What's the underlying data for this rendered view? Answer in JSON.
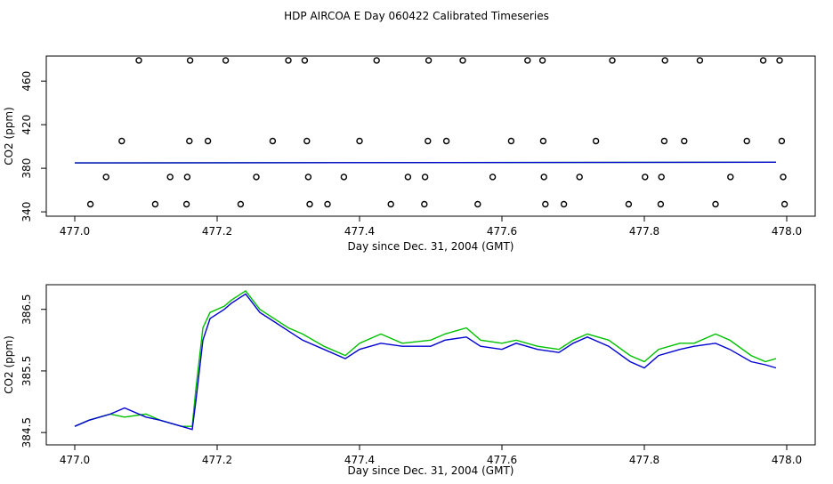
{
  "page": {
    "title": "HDP AIRCOA E  Day 060422  Calibrated Timeseries"
  },
  "colors": {
    "background": "#ffffff",
    "axis": "#000000",
    "series_green": "#00c000",
    "series_blue": "#0000d0",
    "markers": "#000000"
  },
  "chart_data": [
    {
      "type": "scatter",
      "xlabel": "Day since Dec. 31, 2004 (GMT)",
      "ylabel": "CO2 (ppm)",
      "xlim": [
        476.96,
        478.04
      ],
      "ylim": [
        336,
        483
      ],
      "xticks": [
        "477.0",
        "477.2",
        "477.4",
        "477.6",
        "477.8",
        "478.0"
      ],
      "yticks": [
        "340",
        "380",
        "420",
        "460"
      ],
      "marker_series": [
        {
          "y": 479,
          "x": [
            477.09,
            477.162,
            477.212,
            477.3,
            477.323,
            477.424,
            477.497,
            477.545,
            477.636,
            477.657,
            477.755,
            477.829,
            477.878,
            477.967,
            477.99
          ]
        },
        {
          "y": 405,
          "x": [
            477.066,
            477.161,
            477.187,
            477.278,
            477.326,
            477.4,
            477.496,
            477.522,
            477.613,
            477.658,
            477.732,
            477.828,
            477.856,
            477.944,
            477.993
          ]
        },
        {
          "y": 372,
          "x": [
            477.044,
            477.134,
            477.158,
            477.255,
            477.328,
            477.378,
            477.468,
            477.492,
            477.587,
            477.659,
            477.709,
            477.801,
            477.824,
            477.921,
            477.995
          ]
        },
        {
          "y": 347,
          "x": [
            477.022,
            477.113,
            477.157,
            477.233,
            477.33,
            477.355,
            477.444,
            477.491,
            477.566,
            477.661,
            477.687,
            477.778,
            477.823,
            477.9,
            477.997
          ]
        }
      ],
      "line_series": [
        {
          "color": "green",
          "x": [
            477.0,
            477.985
          ],
          "y": [
            384.9,
            385.6
          ]
        },
        {
          "color": "blue",
          "x": [
            477.0,
            477.985
          ],
          "y": [
            384.9,
            385.6
          ]
        }
      ]
    },
    {
      "type": "line",
      "xlabel": "Day since Dec. 31, 2004 (GMT)",
      "ylabel": "CO2 (ppm)",
      "xlim": [
        476.96,
        478.04
      ],
      "ylim": [
        384.3,
        386.9
      ],
      "xticks": [
        "477.0",
        "477.2",
        "477.4",
        "477.6",
        "477.8",
        "478.0"
      ],
      "yticks": [
        "384.5",
        "385.5",
        "386.5"
      ],
      "series": [
        {
          "color": "green",
          "x": [
            477.0,
            477.02,
            477.05,
            477.07,
            477.1,
            477.12,
            477.15,
            477.165,
            477.17,
            477.18,
            477.19,
            477.21,
            477.22,
            477.24,
            477.26,
            477.28,
            477.3,
            477.32,
            477.35,
            477.38,
            477.4,
            477.43,
            477.46,
            477.5,
            477.52,
            477.55,
            477.57,
            477.6,
            477.62,
            477.65,
            477.68,
            477.7,
            477.72,
            477.75,
            477.78,
            477.8,
            477.82,
            477.85,
            477.87,
            477.9,
            477.92,
            477.95,
            477.97,
            477.985
          ],
          "y": [
            384.6,
            384.7,
            384.8,
            384.75,
            384.8,
            384.7,
            384.6,
            384.6,
            385.2,
            386.2,
            386.45,
            386.55,
            386.65,
            386.8,
            386.5,
            386.35,
            386.2,
            386.1,
            385.9,
            385.75,
            385.95,
            386.1,
            385.95,
            386.0,
            386.1,
            386.2,
            386.0,
            385.95,
            386.0,
            385.9,
            385.85,
            386.0,
            386.1,
            386.0,
            385.75,
            385.65,
            385.85,
            385.95,
            385.95,
            386.1,
            386.0,
            385.75,
            385.65,
            385.7
          ]
        },
        {
          "color": "blue",
          "x": [
            477.0,
            477.02,
            477.05,
            477.07,
            477.1,
            477.12,
            477.15,
            477.165,
            477.17,
            477.18,
            477.19,
            477.21,
            477.22,
            477.24,
            477.26,
            477.28,
            477.3,
            477.32,
            477.35,
            477.38,
            477.4,
            477.43,
            477.46,
            477.5,
            477.52,
            477.55,
            477.57,
            477.6,
            477.62,
            477.65,
            477.68,
            477.7,
            477.72,
            477.75,
            477.78,
            477.8,
            477.82,
            477.85,
            477.87,
            477.9,
            477.92,
            477.95,
            477.97,
            477.985
          ],
          "y": [
            384.6,
            384.7,
            384.8,
            384.9,
            384.75,
            384.7,
            384.6,
            384.55,
            385.0,
            386.0,
            386.35,
            386.5,
            386.6,
            386.75,
            386.45,
            386.3,
            386.15,
            386.0,
            385.85,
            385.7,
            385.85,
            385.95,
            385.9,
            385.9,
            386.0,
            386.05,
            385.9,
            385.85,
            385.95,
            385.85,
            385.8,
            385.95,
            386.05,
            385.9,
            385.65,
            385.55,
            385.75,
            385.85,
            385.9,
            385.95,
            385.85,
            385.65,
            385.6,
            385.55
          ]
        }
      ]
    }
  ]
}
